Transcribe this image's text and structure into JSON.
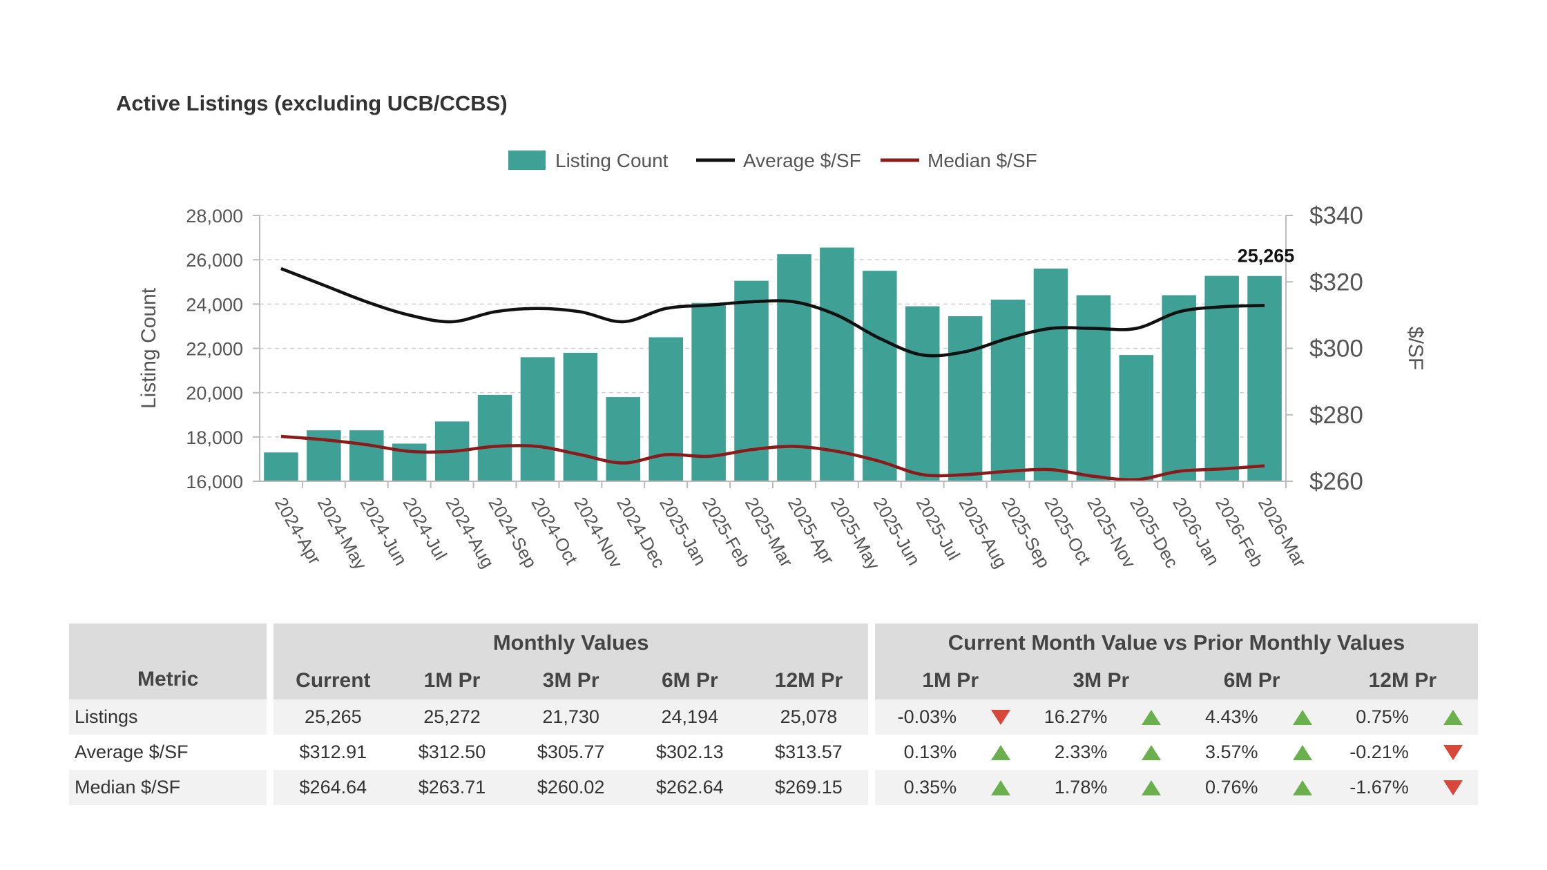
{
  "chart_data": {
    "type": "bar",
    "title": "Active Listings (excluding UCB/CCBS)",
    "categories": [
      "2024-Apr",
      "2024-May",
      "2024-Jun",
      "2024-Jul",
      "2024-Aug",
      "2024-Sep",
      "2024-Oct",
      "2024-Nov",
      "2024-Dec",
      "2025-Jan",
      "2025-Feb",
      "2025-Mar",
      "2025-Apr",
      "2025-May",
      "2025-Jun",
      "2025-Jul",
      "2025-Aug",
      "2025-Sep",
      "2025-Oct",
      "2025-Nov",
      "2025-Dec",
      "2026-Jan",
      "2026-Feb",
      "2026-Mar"
    ],
    "series": [
      {
        "name": "Listing Count",
        "type": "bar",
        "axis": "left",
        "color": "#3fa095",
        "values": [
          17300,
          18300,
          18300,
          17700,
          18700,
          19900,
          21600,
          21800,
          19800,
          22500,
          24050,
          25050,
          26250,
          26550,
          25500,
          23900,
          23450,
          24200,
          25600,
          24400,
          21700,
          24400,
          25272,
          25265
        ]
      },
      {
        "name": "Average $/SF",
        "type": "line",
        "axis": "right",
        "color": "#111111",
        "values": [
          324,
          319,
          314,
          310,
          308,
          311,
          312,
          311,
          308,
          312,
          313,
          314,
          314,
          310,
          303,
          298,
          299,
          303,
          306,
          306,
          306,
          311,
          312.5,
          312.91
        ]
      },
      {
        "name": "Median $/SF",
        "type": "line",
        "axis": "right",
        "color": "#8b1a1a",
        "values": [
          273.5,
          272.5,
          271,
          269,
          269,
          270.5,
          270.5,
          268,
          265.5,
          268,
          267.5,
          269.5,
          270.5,
          269,
          266,
          262,
          262,
          263,
          263.5,
          261.5,
          260.5,
          263,
          263.71,
          264.64
        ]
      }
    ],
    "ylabel": "Listing Count",
    "y2label": "$/SF",
    "ylim": [
      16000,
      28000
    ],
    "y2lim": [
      260,
      340
    ],
    "yticks": [
      "16,000",
      "18,000",
      "20,000",
      "22,000",
      "24,000",
      "26,000",
      "28,000"
    ],
    "y2ticks": [
      "$260",
      "$280",
      "$300",
      "$320",
      "$340"
    ],
    "annotation": {
      "index": 23,
      "text": "25,265"
    },
    "grid": true,
    "legend": "top"
  },
  "table": {
    "metric_header": "Metric",
    "monthly_group": "Monthly Values",
    "compare_group": "Current Month Value vs Prior Monthly Values",
    "monthly_cols": [
      "Current",
      "1M Pr",
      "3M Pr",
      "6M Pr",
      "12M Pr"
    ],
    "compare_cols": [
      "1M Pr",
      "3M Pr",
      "6M Pr",
      "12M Pr"
    ],
    "rows": [
      {
        "metric": "Listings",
        "values": [
          "25,265",
          "25,272",
          "21,730",
          "24,194",
          "25,078"
        ],
        "changes": [
          {
            "value": "-0.03%",
            "dir": "down"
          },
          {
            "value": "16.27%",
            "dir": "up"
          },
          {
            "value": "4.43%",
            "dir": "up"
          },
          {
            "value": "0.75%",
            "dir": "up"
          }
        ]
      },
      {
        "metric": "Average $/SF",
        "values": [
          "$312.91",
          "$312.50",
          "$305.77",
          "$302.13",
          "$313.57"
        ],
        "changes": [
          {
            "value": "0.13%",
            "dir": "up"
          },
          {
            "value": "2.33%",
            "dir": "up"
          },
          {
            "value": "3.57%",
            "dir": "up"
          },
          {
            "value": "-0.21%",
            "dir": "down"
          }
        ]
      },
      {
        "metric": "Median $/SF",
        "values": [
          "$264.64",
          "$263.71",
          "$260.02",
          "$262.64",
          "$269.15"
        ],
        "changes": [
          {
            "value": "0.35%",
            "dir": "up"
          },
          {
            "value": "1.78%",
            "dir": "up"
          },
          {
            "value": "0.76%",
            "dir": "up"
          },
          {
            "value": "-1.67%",
            "dir": "down"
          }
        ]
      }
    ]
  }
}
